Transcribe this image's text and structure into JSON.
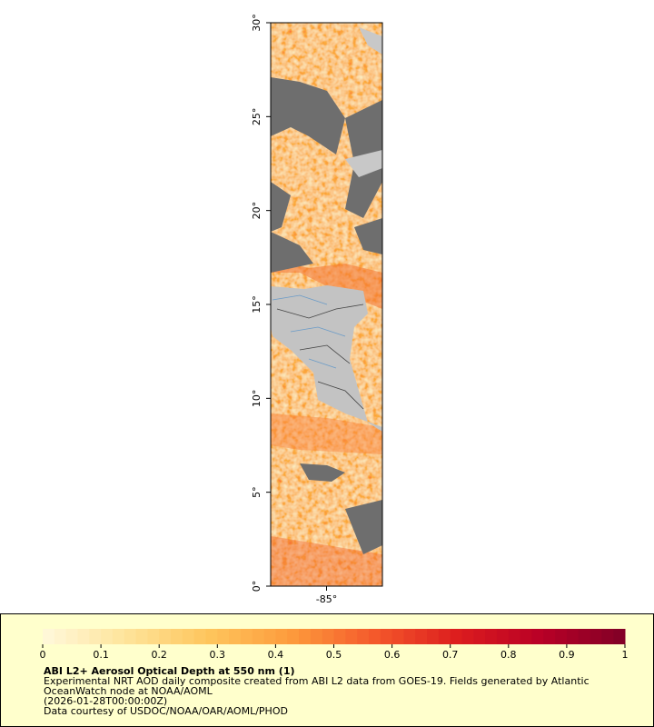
{
  "map": {
    "lat_range": [
      0,
      30
    ],
    "lon_range": [
      -86.5,
      -83.5
    ],
    "lat_ticks": [
      {
        "value": 0,
        "label": "0°"
      },
      {
        "value": 5,
        "label": "5°"
      },
      {
        "value": 10,
        "label": "10°"
      },
      {
        "value": 15,
        "label": "15°"
      },
      {
        "value": 20,
        "label": "20°"
      },
      {
        "value": 25,
        "label": "25°"
      },
      {
        "value": 30,
        "label": "30°"
      }
    ],
    "lon_ticks": [
      {
        "value": -85,
        "label": "-85°"
      }
    ]
  },
  "colorbar": {
    "range": [
      0,
      1
    ],
    "ticks": [
      0,
      0.1,
      0.2,
      0.3,
      0.4,
      0.5,
      0.6,
      0.7,
      0.8,
      0.9,
      1
    ],
    "colors": [
      "#fff8dc",
      "#fee49a",
      "#fec55c",
      "#fd9a3c",
      "#f4582b",
      "#dc1c1e",
      "#b80026",
      "#800026"
    ]
  },
  "legend": {
    "title": "ABI L2+ Aerosol Optical Depth at 550 nm (1)",
    "lines": [
      "Experimental NRT AOD daily composite created from ABI L2 data from GOES-19. Fields generated by Atlantic",
      "OceanWatch node at NOAA/AOML",
      "(2026-01-28T00:00:00Z)",
      "Data courtesy of USDOC/NOAA/OAR/AOML/PHOD"
    ]
  }
}
